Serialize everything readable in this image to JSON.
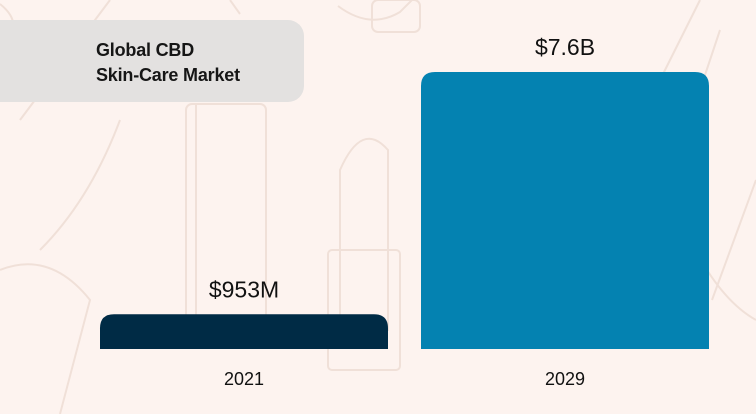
{
  "chart_data": {
    "type": "bar",
    "title": "Global CBD Skin-Care Market",
    "title_lines": [
      "Global CBD",
      "Skin-Care Market"
    ],
    "categories": [
      "2021",
      "2029"
    ],
    "values": [
      0.953,
      7.6
    ],
    "value_unit": "billion USD",
    "data_labels": [
      "$953M",
      "$7.6B"
    ],
    "bar_colors": [
      "#002b45",
      "#0482b1"
    ],
    "xlabel": "",
    "ylabel": "",
    "grid": false,
    "legend": "none"
  },
  "colors": {
    "background": "#fdf3ef",
    "title_box": "#e3e1e0"
  }
}
